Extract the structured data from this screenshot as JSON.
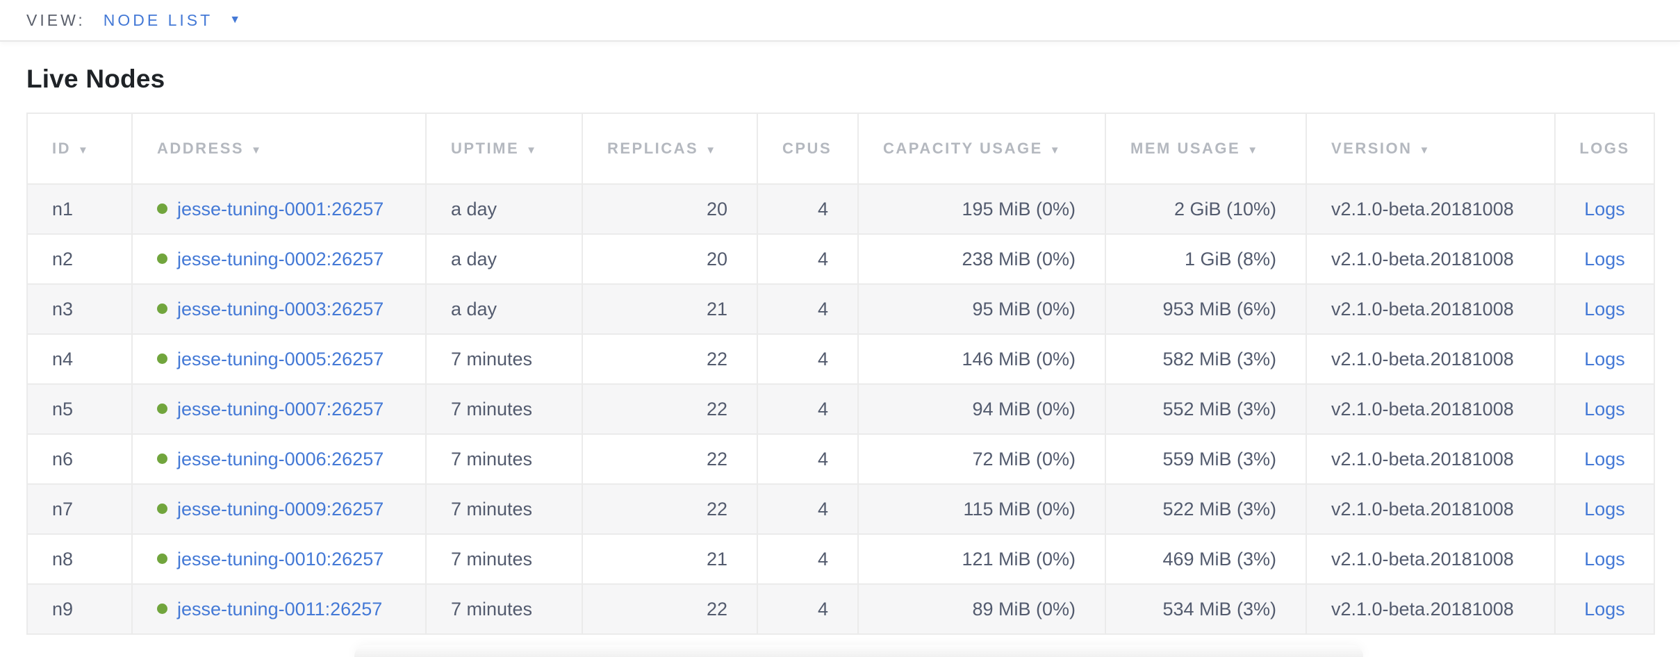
{
  "topbar": {
    "view_label": "VIEW:",
    "view_value": "NODE LIST"
  },
  "title": "Live Nodes",
  "icons": {
    "sort_desc": "▼",
    "dropdown_arrow": "▼"
  },
  "colors": {
    "accent_blue": "#4479d6",
    "status_live_green": "#71a53d",
    "header_text": "#b4b8bf",
    "cell_text": "#535b6e",
    "topbar_label": "#5a5f6b",
    "stripe": "#f6f6f7"
  },
  "table": {
    "columns": [
      {
        "key": "id",
        "label": "ID",
        "sortable": true,
        "align": "left"
      },
      {
        "key": "address",
        "label": "ADDRESS",
        "sortable": true,
        "align": "left"
      },
      {
        "key": "uptime",
        "label": "UPTIME",
        "sortable": true,
        "align": "left"
      },
      {
        "key": "replicas",
        "label": "REPLICAS",
        "sortable": true,
        "align": "right"
      },
      {
        "key": "cpus",
        "label": "CPUS",
        "sortable": false,
        "align": "right"
      },
      {
        "key": "capacity",
        "label": "CAPACITY USAGE",
        "sortable": true,
        "align": "right"
      },
      {
        "key": "mem",
        "label": "MEM USAGE",
        "sortable": true,
        "align": "right"
      },
      {
        "key": "version",
        "label": "VERSION",
        "sortable": true,
        "align": "left"
      },
      {
        "key": "logs",
        "label": "LOGS",
        "sortable": false,
        "align": "center"
      }
    ],
    "rows": [
      {
        "id": "n1",
        "status": "live",
        "address": "jesse-tuning-0001:26257",
        "uptime": "a day",
        "replicas": "20",
        "cpus": "4",
        "capacity": "195 MiB (0%)",
        "mem": "2 GiB (10%)",
        "version": "v2.1.0-beta.20181008",
        "logs": "Logs"
      },
      {
        "id": "n2",
        "status": "live",
        "address": "jesse-tuning-0002:26257",
        "uptime": "a day",
        "replicas": "20",
        "cpus": "4",
        "capacity": "238 MiB (0%)",
        "mem": "1 GiB (8%)",
        "version": "v2.1.0-beta.20181008",
        "logs": "Logs"
      },
      {
        "id": "n3",
        "status": "live",
        "address": "jesse-tuning-0003:26257",
        "uptime": "a day",
        "replicas": "21",
        "cpus": "4",
        "capacity": "95 MiB (0%)",
        "mem": "953 MiB (6%)",
        "version": "v2.1.0-beta.20181008",
        "logs": "Logs"
      },
      {
        "id": "n4",
        "status": "live",
        "address": "jesse-tuning-0005:26257",
        "uptime": "7 minutes",
        "replicas": "22",
        "cpus": "4",
        "capacity": "146 MiB (0%)",
        "mem": "582 MiB (3%)",
        "version": "v2.1.0-beta.20181008",
        "logs": "Logs"
      },
      {
        "id": "n5",
        "status": "live",
        "address": "jesse-tuning-0007:26257",
        "uptime": "7 minutes",
        "replicas": "22",
        "cpus": "4",
        "capacity": "94 MiB (0%)",
        "mem": "552 MiB (3%)",
        "version": "v2.1.0-beta.20181008",
        "logs": "Logs"
      },
      {
        "id": "n6",
        "status": "live",
        "address": "jesse-tuning-0006:26257",
        "uptime": "7 minutes",
        "replicas": "22",
        "cpus": "4",
        "capacity": "72 MiB (0%)",
        "mem": "559 MiB (3%)",
        "version": "v2.1.0-beta.20181008",
        "logs": "Logs"
      },
      {
        "id": "n7",
        "status": "live",
        "address": "jesse-tuning-0009:26257",
        "uptime": "7 minutes",
        "replicas": "22",
        "cpus": "4",
        "capacity": "115 MiB (0%)",
        "mem": "522 MiB (3%)",
        "version": "v2.1.0-beta.20181008",
        "logs": "Logs"
      },
      {
        "id": "n8",
        "status": "live",
        "address": "jesse-tuning-0010:26257",
        "uptime": "7 minutes",
        "replicas": "21",
        "cpus": "4",
        "capacity": "121 MiB (0%)",
        "mem": "469 MiB (3%)",
        "version": "v2.1.0-beta.20181008",
        "logs": "Logs"
      },
      {
        "id": "n9",
        "status": "live",
        "address": "jesse-tuning-0011:26257",
        "uptime": "7 minutes",
        "replicas": "22",
        "cpus": "4",
        "capacity": "89 MiB (0%)",
        "mem": "534 MiB (3%)",
        "version": "v2.1.0-beta.20181008",
        "logs": "Logs"
      }
    ]
  }
}
